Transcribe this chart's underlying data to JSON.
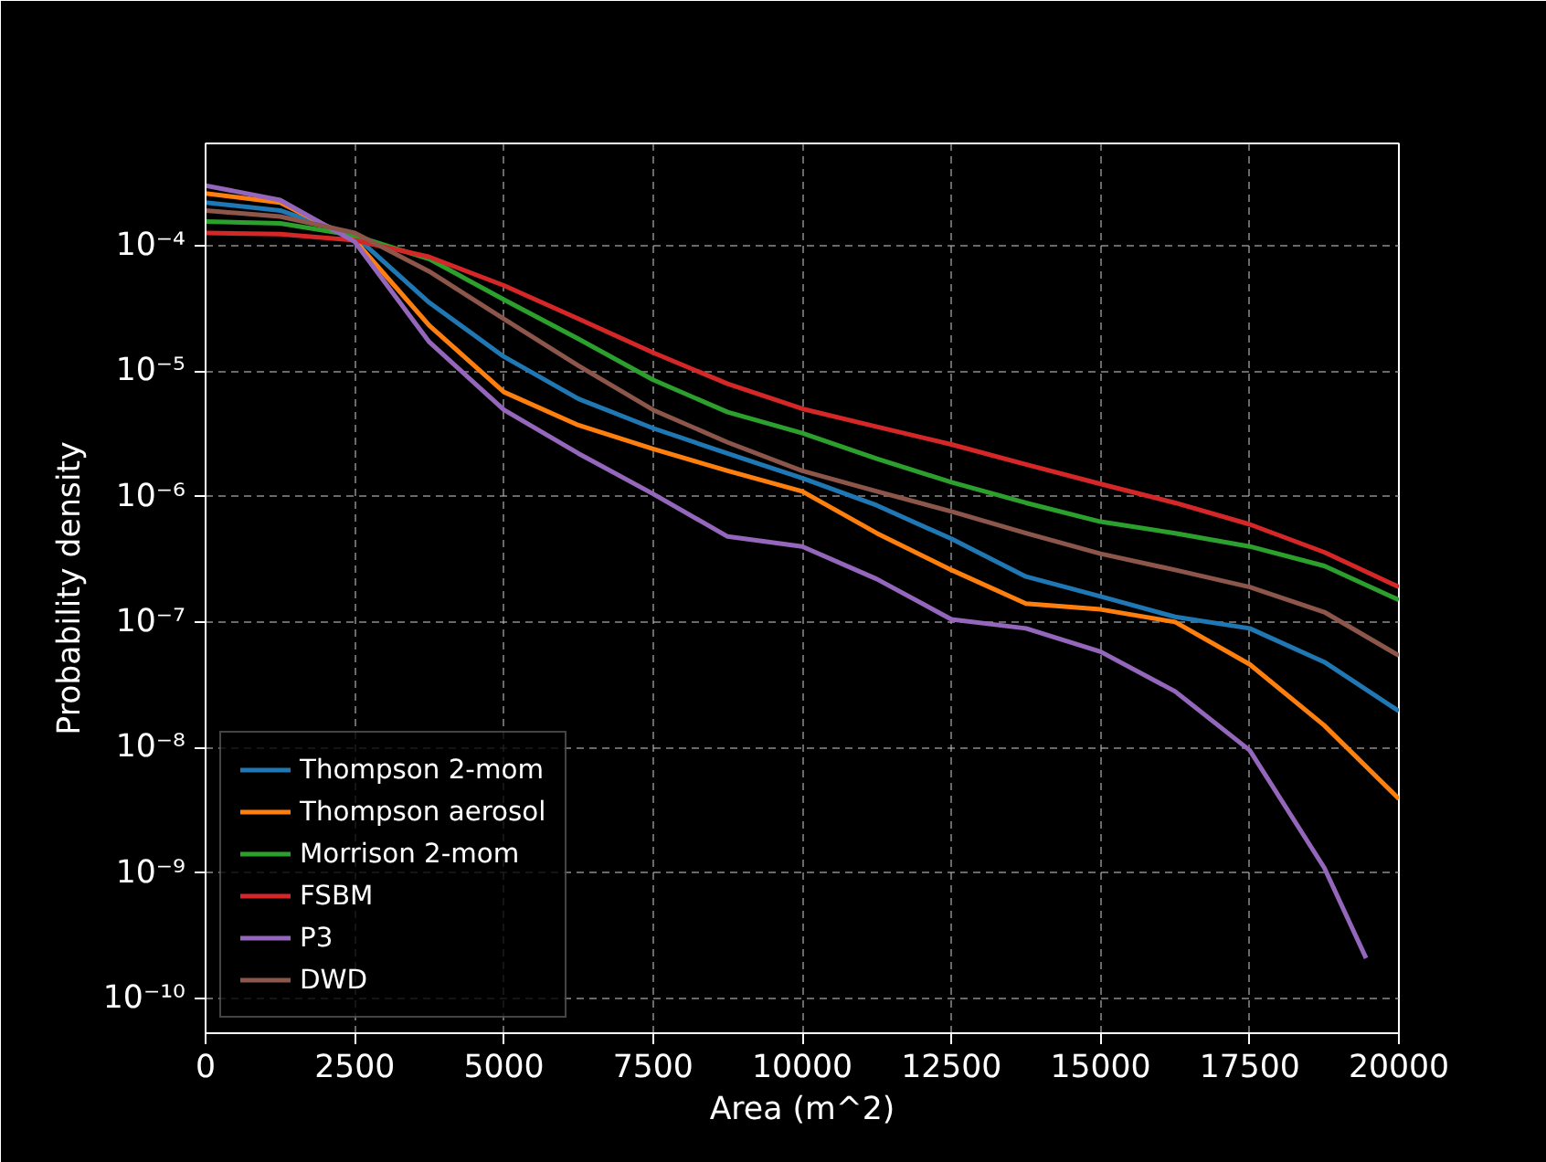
{
  "chart_data": {
    "type": "line",
    "xlabel": "Area (m^2)",
    "ylabel": "Probability density",
    "x": [
      0,
      1250,
      2500,
      3750,
      5000,
      6250,
      7500,
      8750,
      10000,
      11250,
      12500,
      13750,
      15000,
      16250,
      17500,
      18750,
      20000
    ],
    "series": [
      {
        "name": "Thompson 2-mom",
        "color": "#1f77b4",
        "values": [
          0.00022,
          0.00019,
          0.00012,
          3.5e-05,
          1.3e-05,
          6e-06,
          3.5e-06,
          2.2e-06,
          1.4e-06,
          8.5e-07,
          4.6e-07,
          2.3e-07,
          1.6e-07,
          1.1e-07,
          8.9e-08,
          4.8e-08,
          1.95e-08
        ]
      },
      {
        "name": "Thompson aerosol",
        "color": "#ff7f0e",
        "values": [
          0.00026,
          0.00022,
          0.00011,
          2.3e-05,
          6.8e-06,
          3.7e-06,
          2.4e-06,
          1.6e-06,
          1.1e-06,
          5.1e-07,
          2.6e-07,
          1.4e-07,
          1.26e-07,
          1e-07,
          4.6e-08,
          1.5e-08,
          3.9e-09
        ]
      },
      {
        "name": "Morrison 2-mom",
        "color": "#2ca02c",
        "values": [
          0.000155,
          0.00015,
          0.00012,
          7.8e-05,
          3.7e-05,
          1.8e-05,
          8.5e-06,
          4.7e-06,
          3.2e-06,
          2e-06,
          1.3e-06,
          8.9e-07,
          6.3e-07,
          5.1e-07,
          4e-07,
          2.8e-07,
          1.5e-07
        ]
      },
      {
        "name": "FSBM",
        "color": "#d62728",
        "values": [
          0.000126,
          0.000123,
          0.00011,
          8.1e-05,
          4.8e-05,
          2.6e-05,
          1.4e-05,
          7.9e-06,
          5e-06,
          3.6e-06,
          2.6e-06,
          1.8e-06,
          1.26e-06,
          8.9e-07,
          6e-07,
          3.6e-07,
          1.9e-07
        ]
      },
      {
        "name": "P3",
        "color": "#9467bd",
        "x": [
          0,
          1250,
          2500,
          3750,
          5000,
          6250,
          7500,
          8750,
          10000,
          11250,
          12500,
          13750,
          15000,
          16250,
          17500,
          18750,
          19450
        ],
        "values": [
          0.0003,
          0.00023,
          0.000107,
          1.7e-05,
          4.9e-06,
          2.2e-06,
          1.05e-06,
          4.8e-07,
          4e-07,
          2.2e-07,
          1.05e-07,
          8.9e-08,
          5.8e-08,
          2.8e-08,
          9.5e-09,
          1.1e-09,
          2.1e-10
        ]
      },
      {
        "name": "DWD",
        "color": "#8c564b",
        "values": [
          0.00019,
          0.00017,
          0.000126,
          6.2e-05,
          2.6e-05,
          1.1e-05,
          4.9e-06,
          2.7e-06,
          1.6e-06,
          1.1e-06,
          7.6e-07,
          5.1e-07,
          3.5e-07,
          2.6e-07,
          1.9e-07,
          1.2e-07,
          5.4e-08
        ]
      }
    ],
    "log": "y",
    "xlim": [
      0,
      20000
    ],
    "xticks": [
      0,
      2500,
      5000,
      7500,
      10000,
      12500,
      15000,
      17500,
      20000
    ],
    "ylim": [
      5.3e-11,
      0.00065
    ],
    "yticks": [
      {
        "value": 1e-10,
        "label": "10⁻¹⁰"
      },
      {
        "value": 1e-09,
        "label": "10⁻⁹"
      },
      {
        "value": 1e-08,
        "label": "10⁻⁸"
      },
      {
        "value": 1e-07,
        "label": "10⁻⁷"
      },
      {
        "value": 1e-06,
        "label": "10⁻⁶"
      },
      {
        "value": 1e-05,
        "label": "10⁻⁵"
      },
      {
        "value": 0.0001,
        "label": "10⁻⁴"
      }
    ],
    "grid": true,
    "legend": "bottom left",
    "line_style": "solid"
  }
}
